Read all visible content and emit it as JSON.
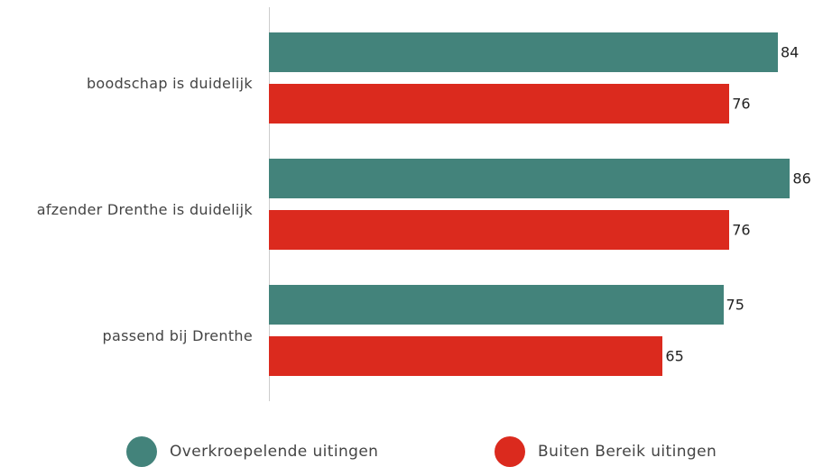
{
  "chart_data": {
    "type": "bar",
    "orientation": "horizontal",
    "categories": [
      "boodschap is duidelijk",
      "afzender Drenthe is duidelijk",
      "passend bij Drenthe"
    ],
    "series": [
      {
        "name": "Overkroepelende uitingen",
        "color": "#43837b",
        "values": [
          84,
          86,
          75
        ]
      },
      {
        "name": "Buiten Bereik uitingen",
        "color": "#db2a1e",
        "values": [
          76,
          76,
          65
        ]
      }
    ]
  }
}
